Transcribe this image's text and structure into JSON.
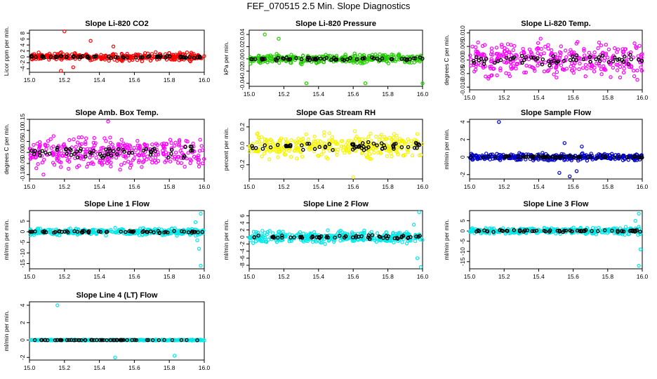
{
  "page_title": "FEF_070515  2.5 Min. Slope Diagnostics",
  "colors": {
    "fast_series": "black",
    "red": "#ff0000",
    "green": "#22cc00",
    "magenta": "#ff00ff",
    "yellow": "#f5f500",
    "blue": "#0000cc",
    "cyan": "#00e8e8"
  },
  "chart_data": [
    {
      "type": "scatter",
      "title": "Slope Li-820 CO2",
      "ylabel": "Licor ppm per min.",
      "xlim": [
        15.0,
        16.0
      ],
      "x_ticks": [
        "15.0",
        "15.2",
        "15.4",
        "15.6",
        "15.8",
        "16.0"
      ],
      "ylim": [
        -5.2,
        9
      ],
      "y_ticks": [
        "-4",
        "-2",
        "0",
        "2",
        "4",
        "6",
        "8"
      ],
      "series_color": "red",
      "spread": 1.0,
      "outliers": [
        [
          15.2,
          8.6
        ],
        [
          15.35,
          5.4
        ],
        [
          15.18,
          -4.7
        ],
        [
          15.25,
          -3.5
        ],
        [
          15.48,
          3.5
        ]
      ]
    },
    {
      "type": "scatter",
      "title": "Slope Li-820 Pressure",
      "ylabel": "kPa per min.",
      "xlim": [
        15.0,
        16.0
      ],
      "x_ticks": [
        "15.0",
        "15.2",
        "15.4",
        "15.6",
        "15.8",
        "16.0"
      ],
      "ylim": [
        -0.045,
        0.047
      ],
      "y_ticks": [
        "-0.04",
        "-0.02",
        "0.00",
        "0.02",
        "0.04"
      ],
      "series_color": "green",
      "spread": 0.006,
      "outliers": [
        [
          15.09,
          0.04
        ],
        [
          15.17,
          0.033
        ],
        [
          15.33,
          -0.04
        ],
        [
          15.67,
          -0.04
        ],
        [
          16.0,
          -0.04
        ]
      ]
    },
    {
      "type": "scatter",
      "title": "Slope Li-820 Temp.",
      "ylabel": "degrees C per min.",
      "xlim": [
        15.0,
        16.0
      ],
      "x_ticks": [
        "15.0",
        "15.2",
        "15.4",
        "15.6",
        "15.8",
        "16.0"
      ],
      "ylim": [
        -0.011,
        0.011
      ],
      "y_ticks": [
        "-0.010",
        "-0.005",
        "0.000",
        "0.005",
        "0.010"
      ],
      "series_color": "magenta",
      "spread": 0.005,
      "outliers": []
    },
    {
      "type": "scatter",
      "title": "Slope Amb. Box Temp.",
      "ylabel": "degrees C per min.",
      "xlim": [
        15.0,
        16.0
      ],
      "x_ticks": [
        "15.0",
        "15.2",
        "15.4",
        "15.6",
        "15.8",
        "16.0"
      ],
      "ylim": [
        -0.12,
        0.15
      ],
      "y_ticks": [
        "-0.10",
        "-0.05",
        "0.00",
        "0.05",
        "0.10",
        "0.15"
      ],
      "series_color": "magenta",
      "spread": 0.055,
      "outliers": [
        [
          15.45,
          0.14
        ],
        [
          15.08,
          -0.1
        ]
      ]
    },
    {
      "type": "scatter",
      "title": "Slope Gas Stream RH",
      "ylabel": "percent per min.",
      "xlim": [
        15.0,
        16.0
      ],
      "x_ticks": [
        "15.0",
        "15.2",
        "15.4",
        "15.6",
        "15.8",
        "16.0"
      ],
      "ylim": [
        -0.35,
        0.28
      ],
      "y_ticks": [
        "-0.2",
        "0.0",
        "0.2"
      ],
      "series_color": "yellow",
      "spread": 0.1,
      "outliers": [
        [
          15.6,
          -0.33
        ]
      ]
    },
    {
      "type": "scatter",
      "title": "Slope Sample Flow",
      "ylabel": "ml/min per min.",
      "xlim": [
        15.0,
        16.0
      ],
      "x_ticks": [
        "15.0",
        "15.2",
        "15.4",
        "15.6",
        "15.8",
        "16.0"
      ],
      "ylim": [
        -2.5,
        4.3
      ],
      "y_ticks": [
        "-2",
        "0",
        "2",
        "4"
      ],
      "series_color": "blue",
      "spread": 0.3,
      "outliers": [
        [
          15.17,
          4.0
        ],
        [
          15.52,
          -1.8
        ],
        [
          15.58,
          -2.2
        ],
        [
          15.62,
          -1.6
        ],
        [
          15.55,
          1.6
        ],
        [
          15.65,
          1.2
        ]
      ]
    },
    {
      "type": "scatter",
      "title": "Slope Line 1 Flow",
      "ylabel": "ml/min per min.",
      "xlim": [
        15.0,
        16.0
      ],
      "x_ticks": [
        "15.0",
        "15.2",
        "15.4",
        "15.6",
        "15.8",
        "16.0"
      ],
      "ylim": [
        -17.5,
        10
      ],
      "y_ticks": [
        "-15",
        "-10",
        "-5",
        "0",
        "5"
      ],
      "series_color": "cyan",
      "spread": 1.3,
      "outliers": [
        [
          15.98,
          8.5
        ],
        [
          15.97,
          -8
        ],
        [
          15.98,
          -16
        ],
        [
          15.95,
          4.5
        ],
        [
          15.96,
          -4
        ]
      ]
    },
    {
      "type": "scatter",
      "title": "Slope Line 2 Flow",
      "ylabel": "ml/min per min.",
      "xlim": [
        15.0,
        16.0
      ],
      "x_ticks": [
        "15.0",
        "15.2",
        "15.4",
        "15.6",
        "15.8",
        "16.0"
      ],
      "ylim": [
        -9,
        7.5
      ],
      "y_ticks": [
        "-8",
        "-6",
        "-4",
        "-2",
        "0",
        "2",
        "4",
        "6"
      ],
      "series_color": "cyan",
      "spread": 1.2,
      "outliers": [
        [
          15.98,
          7
        ],
        [
          15.97,
          -6
        ],
        [
          15.99,
          -8.5
        ],
        [
          15.95,
          3.5
        ]
      ]
    },
    {
      "type": "scatter",
      "title": "Slope Line 3 Flow",
      "ylabel": "ml/min per min.",
      "xlim": [
        15.0,
        16.0
      ],
      "x_ticks": [
        "15.0",
        "15.2",
        "15.4",
        "15.6",
        "15.8",
        "16.0"
      ],
      "ylim": [
        -18.5,
        10
      ],
      "y_ticks": [
        "-15",
        "-10",
        "-5",
        "0",
        "5"
      ],
      "series_color": "cyan",
      "spread": 1.3,
      "outliers": [
        [
          15.98,
          8.5
        ],
        [
          15.98,
          -17
        ],
        [
          15.96,
          5
        ],
        [
          15.99,
          -9
        ]
      ]
    },
    {
      "type": "scatter",
      "title": "Slope Line 4 (LT) Flow",
      "ylabel": "ml/min per min.",
      "xlim": [
        15.0,
        16.0
      ],
      "x_ticks": [
        "15.0",
        "15.2",
        "15.4",
        "15.6",
        "15.8",
        "16.0"
      ],
      "ylim": [
        -2.3,
        4.4
      ],
      "y_ticks": [
        "-2",
        "0",
        "2",
        "4"
      ],
      "series_color": "cyan",
      "spread": 0.04,
      "outliers": [
        [
          15.16,
          4.0
        ],
        [
          15.49,
          -2.0
        ],
        [
          15.83,
          -1.8
        ]
      ]
    }
  ]
}
